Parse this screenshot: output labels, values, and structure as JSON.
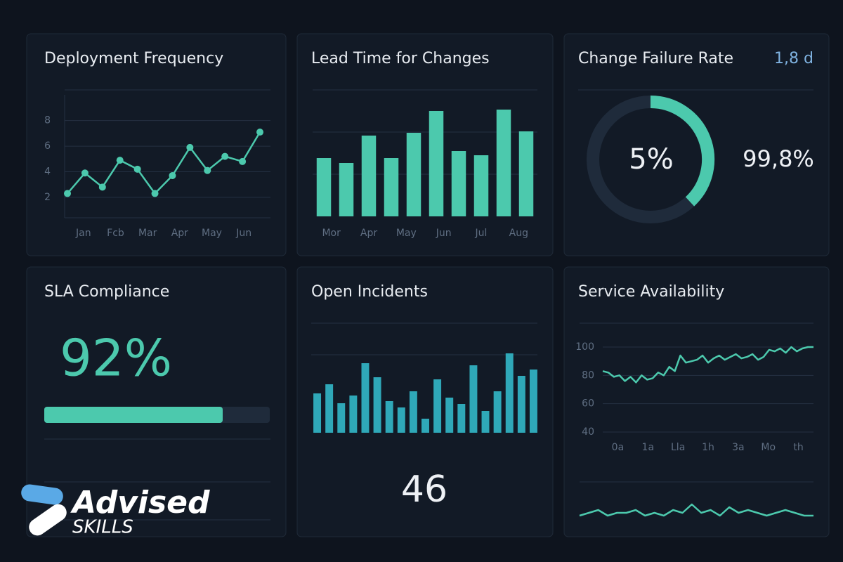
{
  "panels": [
    {
      "title": "Deployment Frequency",
      "chart": {
        "type": "line",
        "color": "#4cc9ad",
        "values": [
          2.3,
          3.9,
          2.8,
          4.9,
          4.2,
          2.3,
          3.7,
          5.9,
          4.1,
          5.2,
          4.8,
          7.1
        ],
        "x_labels": [
          "Jan",
          "Fcb",
          "Mar",
          "Apr",
          "May",
          "Jun"
        ],
        "ylim": [
          0.4,
          10.4
        ],
        "yticks": [
          2,
          4,
          6,
          8
        ],
        "markers": true
      }
    },
    {
      "title": "Lead Time for Changes",
      "chart": {
        "type": "bar",
        "color": "#4cc9ad",
        "values": [
          83,
          76,
          115,
          83,
          119,
          150,
          93,
          87,
          152,
          121
        ],
        "x_labels": [
          "Mor",
          "Apr",
          "May",
          "Jun",
          "Jul",
          "Aug"
        ],
        "ylim": [
          0,
          180
        ]
      }
    },
    {
      "title": "Change Failure Rate",
      "corner_value": "1,8 d",
      "gauge_label": "5%",
      "side_value": "99,8%"
    },
    {
      "title": "SLA Compliance",
      "value": "92%"
    },
    {
      "title": "Open Incidents",
      "chart": {
        "type": "bar",
        "color": "#2fa8b8",
        "values": [
          56,
          69,
          42,
          53,
          99,
          79,
          45,
          36,
          59,
          20,
          76,
          50,
          41,
          96,
          31,
          59,
          113,
          81,
          90
        ],
        "ylim": [
          0,
          156
        ]
      },
      "value": "46"
    },
    {
      "title": "Service Availability",
      "chart": {
        "type": "line",
        "color": "#4cc9ad",
        "values": [
          83,
          82,
          79,
          80,
          76,
          79,
          75,
          80,
          77,
          78,
          82,
          80,
          86,
          83,
          94,
          89,
          90,
          91,
          94,
          89,
          92,
          94,
          91,
          93,
          95,
          92,
          93,
          95,
          91,
          93,
          98,
          97,
          99,
          96,
          100,
          97,
          99,
          100,
          100
        ],
        "x_labels": [
          "0a",
          "1a",
          "Lla",
          "1h",
          "3a",
          "Mo",
          "th"
        ],
        "ylim": [
          40,
          100
        ],
        "yticks": [
          100,
          80,
          60,
          40
        ]
      },
      "sparkline": {
        "type": "line",
        "color": "#4cc9ad",
        "values": [
          4,
          5,
          6,
          4,
          5,
          5,
          6,
          4,
          5,
          4,
          6,
          5,
          8,
          5,
          6,
          4,
          7,
          5,
          6,
          5,
          4,
          5,
          6,
          5,
          4,
          4
        ],
        "ylim": [
          0,
          10
        ]
      }
    }
  ],
  "logo": {
    "name": "Advised",
    "tagline": "SKILLS"
  }
}
